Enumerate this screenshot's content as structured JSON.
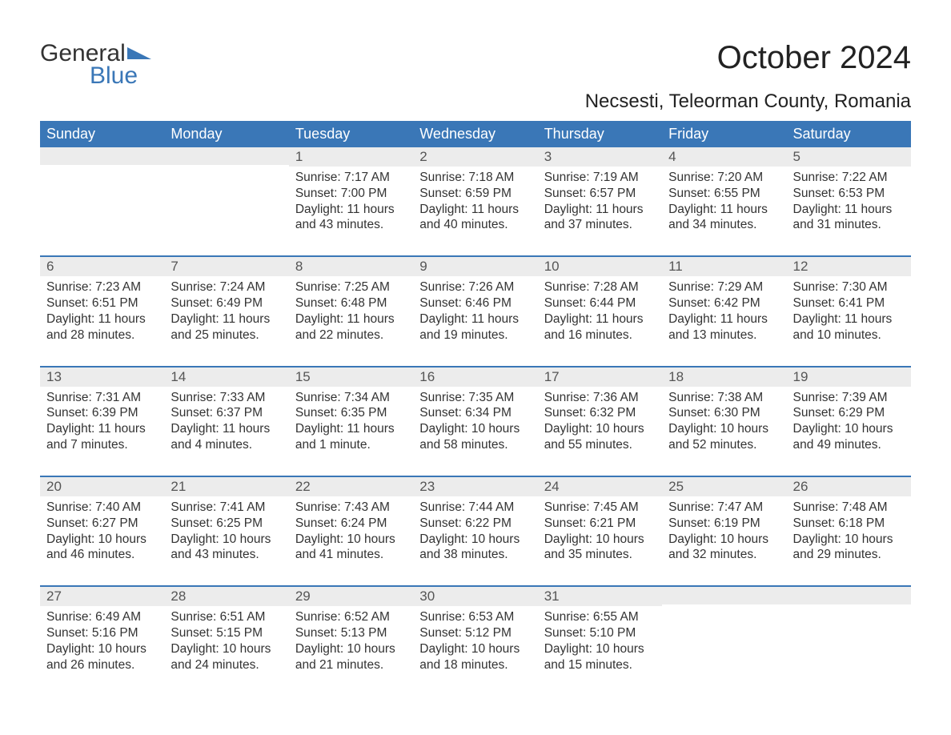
{
  "brand": {
    "word1": "General",
    "word2": "Blue",
    "accent_color": "#3a77b7"
  },
  "title": "October 2024",
  "subtitle": "Necsesti, Teleorman County, Romania",
  "colors": {
    "header_bg": "#3a77b7",
    "header_text": "#ffffff",
    "daynum_bg": "#ececec",
    "text": "#333333",
    "page_bg": "#ffffff"
  },
  "day_headers": [
    "Sunday",
    "Monday",
    "Tuesday",
    "Wednesday",
    "Thursday",
    "Friday",
    "Saturday"
  ],
  "weeks": [
    [
      {
        "num": "",
        "sunrise": "",
        "sunset": "",
        "daylight1": "",
        "daylight2": ""
      },
      {
        "num": "",
        "sunrise": "",
        "sunset": "",
        "daylight1": "",
        "daylight2": ""
      },
      {
        "num": "1",
        "sunrise": "Sunrise: 7:17 AM",
        "sunset": "Sunset: 7:00 PM",
        "daylight1": "Daylight: 11 hours",
        "daylight2": "and 43 minutes."
      },
      {
        "num": "2",
        "sunrise": "Sunrise: 7:18 AM",
        "sunset": "Sunset: 6:59 PM",
        "daylight1": "Daylight: 11 hours",
        "daylight2": "and 40 minutes."
      },
      {
        "num": "3",
        "sunrise": "Sunrise: 7:19 AM",
        "sunset": "Sunset: 6:57 PM",
        "daylight1": "Daylight: 11 hours",
        "daylight2": "and 37 minutes."
      },
      {
        "num": "4",
        "sunrise": "Sunrise: 7:20 AM",
        "sunset": "Sunset: 6:55 PM",
        "daylight1": "Daylight: 11 hours",
        "daylight2": "and 34 minutes."
      },
      {
        "num": "5",
        "sunrise": "Sunrise: 7:22 AM",
        "sunset": "Sunset: 6:53 PM",
        "daylight1": "Daylight: 11 hours",
        "daylight2": "and 31 minutes."
      }
    ],
    [
      {
        "num": "6",
        "sunrise": "Sunrise: 7:23 AM",
        "sunset": "Sunset: 6:51 PM",
        "daylight1": "Daylight: 11 hours",
        "daylight2": "and 28 minutes."
      },
      {
        "num": "7",
        "sunrise": "Sunrise: 7:24 AM",
        "sunset": "Sunset: 6:49 PM",
        "daylight1": "Daylight: 11 hours",
        "daylight2": "and 25 minutes."
      },
      {
        "num": "8",
        "sunrise": "Sunrise: 7:25 AM",
        "sunset": "Sunset: 6:48 PM",
        "daylight1": "Daylight: 11 hours",
        "daylight2": "and 22 minutes."
      },
      {
        "num": "9",
        "sunrise": "Sunrise: 7:26 AM",
        "sunset": "Sunset: 6:46 PM",
        "daylight1": "Daylight: 11 hours",
        "daylight2": "and 19 minutes."
      },
      {
        "num": "10",
        "sunrise": "Sunrise: 7:28 AM",
        "sunset": "Sunset: 6:44 PM",
        "daylight1": "Daylight: 11 hours",
        "daylight2": "and 16 minutes."
      },
      {
        "num": "11",
        "sunrise": "Sunrise: 7:29 AM",
        "sunset": "Sunset: 6:42 PM",
        "daylight1": "Daylight: 11 hours",
        "daylight2": "and 13 minutes."
      },
      {
        "num": "12",
        "sunrise": "Sunrise: 7:30 AM",
        "sunset": "Sunset: 6:41 PM",
        "daylight1": "Daylight: 11 hours",
        "daylight2": "and 10 minutes."
      }
    ],
    [
      {
        "num": "13",
        "sunrise": "Sunrise: 7:31 AM",
        "sunset": "Sunset: 6:39 PM",
        "daylight1": "Daylight: 11 hours",
        "daylight2": "and 7 minutes."
      },
      {
        "num": "14",
        "sunrise": "Sunrise: 7:33 AM",
        "sunset": "Sunset: 6:37 PM",
        "daylight1": "Daylight: 11 hours",
        "daylight2": "and 4 minutes."
      },
      {
        "num": "15",
        "sunrise": "Sunrise: 7:34 AM",
        "sunset": "Sunset: 6:35 PM",
        "daylight1": "Daylight: 11 hours",
        "daylight2": "and 1 minute."
      },
      {
        "num": "16",
        "sunrise": "Sunrise: 7:35 AM",
        "sunset": "Sunset: 6:34 PM",
        "daylight1": "Daylight: 10 hours",
        "daylight2": "and 58 minutes."
      },
      {
        "num": "17",
        "sunrise": "Sunrise: 7:36 AM",
        "sunset": "Sunset: 6:32 PM",
        "daylight1": "Daylight: 10 hours",
        "daylight2": "and 55 minutes."
      },
      {
        "num": "18",
        "sunrise": "Sunrise: 7:38 AM",
        "sunset": "Sunset: 6:30 PM",
        "daylight1": "Daylight: 10 hours",
        "daylight2": "and 52 minutes."
      },
      {
        "num": "19",
        "sunrise": "Sunrise: 7:39 AM",
        "sunset": "Sunset: 6:29 PM",
        "daylight1": "Daylight: 10 hours",
        "daylight2": "and 49 minutes."
      }
    ],
    [
      {
        "num": "20",
        "sunrise": "Sunrise: 7:40 AM",
        "sunset": "Sunset: 6:27 PM",
        "daylight1": "Daylight: 10 hours",
        "daylight2": "and 46 minutes."
      },
      {
        "num": "21",
        "sunrise": "Sunrise: 7:41 AM",
        "sunset": "Sunset: 6:25 PM",
        "daylight1": "Daylight: 10 hours",
        "daylight2": "and 43 minutes."
      },
      {
        "num": "22",
        "sunrise": "Sunrise: 7:43 AM",
        "sunset": "Sunset: 6:24 PM",
        "daylight1": "Daylight: 10 hours",
        "daylight2": "and 41 minutes."
      },
      {
        "num": "23",
        "sunrise": "Sunrise: 7:44 AM",
        "sunset": "Sunset: 6:22 PM",
        "daylight1": "Daylight: 10 hours",
        "daylight2": "and 38 minutes."
      },
      {
        "num": "24",
        "sunrise": "Sunrise: 7:45 AM",
        "sunset": "Sunset: 6:21 PM",
        "daylight1": "Daylight: 10 hours",
        "daylight2": "and 35 minutes."
      },
      {
        "num": "25",
        "sunrise": "Sunrise: 7:47 AM",
        "sunset": "Sunset: 6:19 PM",
        "daylight1": "Daylight: 10 hours",
        "daylight2": "and 32 minutes."
      },
      {
        "num": "26",
        "sunrise": "Sunrise: 7:48 AM",
        "sunset": "Sunset: 6:18 PM",
        "daylight1": "Daylight: 10 hours",
        "daylight2": "and 29 minutes."
      }
    ],
    [
      {
        "num": "27",
        "sunrise": "Sunrise: 6:49 AM",
        "sunset": "Sunset: 5:16 PM",
        "daylight1": "Daylight: 10 hours",
        "daylight2": "and 26 minutes."
      },
      {
        "num": "28",
        "sunrise": "Sunrise: 6:51 AM",
        "sunset": "Sunset: 5:15 PM",
        "daylight1": "Daylight: 10 hours",
        "daylight2": "and 24 minutes."
      },
      {
        "num": "29",
        "sunrise": "Sunrise: 6:52 AM",
        "sunset": "Sunset: 5:13 PM",
        "daylight1": "Daylight: 10 hours",
        "daylight2": "and 21 minutes."
      },
      {
        "num": "30",
        "sunrise": "Sunrise: 6:53 AM",
        "sunset": "Sunset: 5:12 PM",
        "daylight1": "Daylight: 10 hours",
        "daylight2": "and 18 minutes."
      },
      {
        "num": "31",
        "sunrise": "Sunrise: 6:55 AM",
        "sunset": "Sunset: 5:10 PM",
        "daylight1": "Daylight: 10 hours",
        "daylight2": "and 15 minutes."
      },
      {
        "num": "",
        "sunrise": "",
        "sunset": "",
        "daylight1": "",
        "daylight2": ""
      },
      {
        "num": "",
        "sunrise": "",
        "sunset": "",
        "daylight1": "",
        "daylight2": ""
      }
    ]
  ]
}
